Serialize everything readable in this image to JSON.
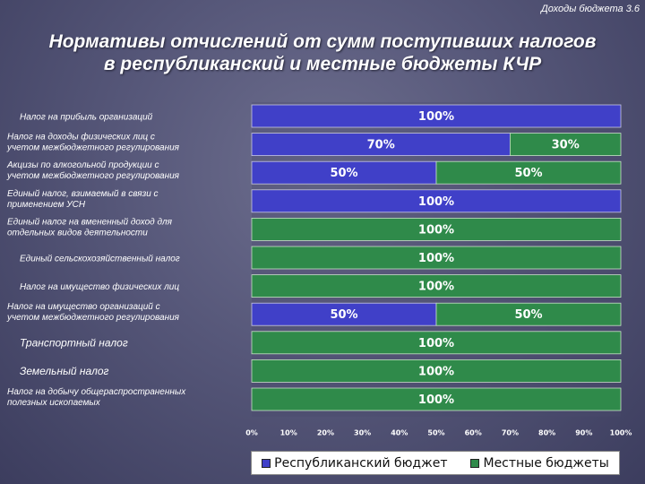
{
  "header": {
    "corner_label": "Доходы бюджета 3.6",
    "title_line1": "Нормативы отчислений от сумм поступивших налогов",
    "title_line2": "в республиканский и местные бюджеты КЧР"
  },
  "colors": {
    "republic": "#4040c8",
    "local": "#2f8a4a"
  },
  "chart_data": {
    "type": "bar",
    "orientation": "horizontal",
    "stacked": true,
    "categories": [
      [
        "Налог на прибыль организаций"
      ],
      [
        "Налог на доходы физических лиц с",
        "учетом межбюджетного регулирования"
      ],
      [
        "Акцизы по алкогольной продукции с",
        "учетом межбюджетного регулирования"
      ],
      [
        "Единый налог, взимаемый в связи с",
        "применением УСН"
      ],
      [
        "Единый налог на вмененный доход для",
        "отдельных видов деятельности"
      ],
      [
        "Единый сельскохозяйственный налог"
      ],
      [
        "Налог на имущество физических лиц"
      ],
      [
        "Налог на имущество организаций с",
        "учетом межбюджетного регулирования"
      ],
      [
        "Транспортный налог"
      ],
      [
        "Земельный налог"
      ],
      [
        "Налог на добычу общераспространенных",
        "полезных ископаемых"
      ]
    ],
    "series": [
      {
        "name": "Республиканский бюджет",
        "values": [
          100,
          70,
          50,
          100,
          0,
          0,
          0,
          50,
          0,
          0,
          0
        ]
      },
      {
        "name": "Местные бюджеты",
        "values": [
          0,
          30,
          50,
          0,
          100,
          100,
          100,
          50,
          100,
          100,
          100
        ]
      }
    ],
    "xlim": [
      0,
      100
    ],
    "x_ticks": [
      "0%",
      "10%",
      "20%",
      "30%",
      "40%",
      "50%",
      "60%",
      "70%",
      "80%",
      "90%",
      "100%"
    ],
    "legend_position": "bottom"
  },
  "legend": {
    "republic_label": "Республиканский бюджет",
    "local_label": "Местные бюджеты"
  }
}
